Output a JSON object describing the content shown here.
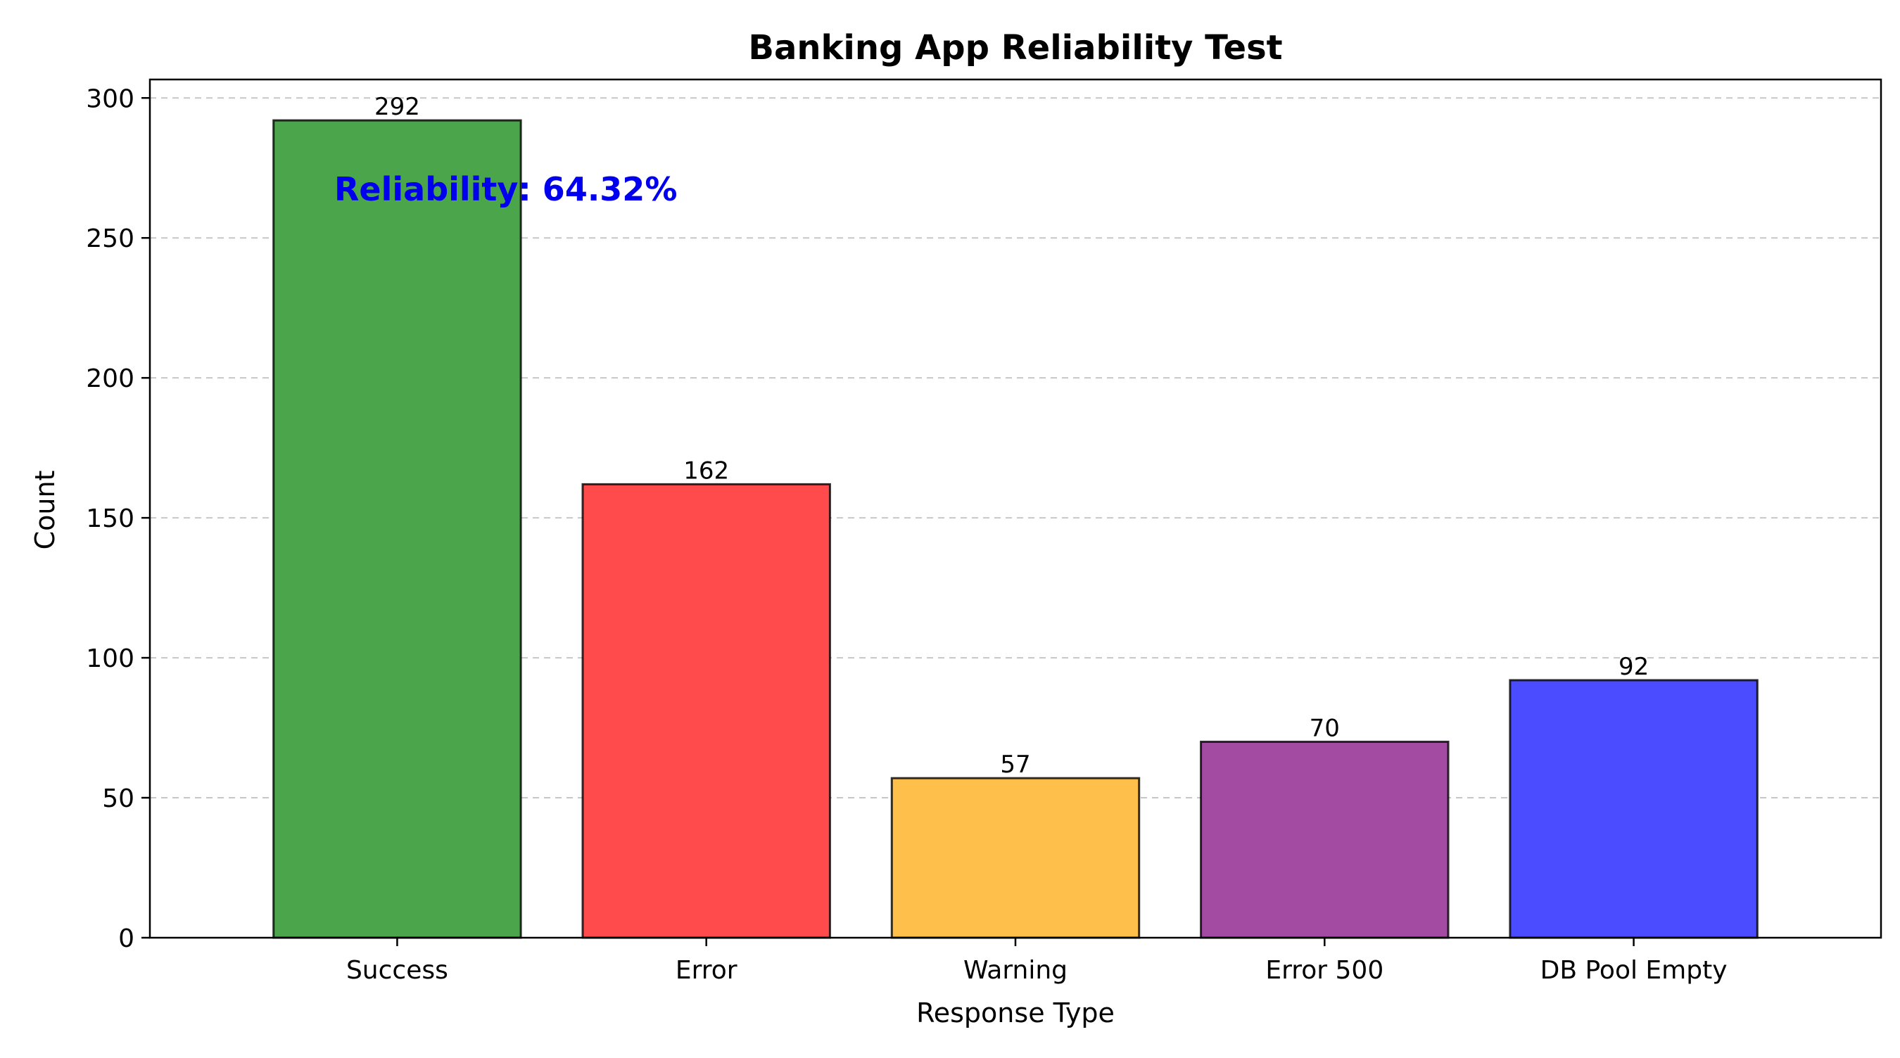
{
  "chart_data": {
    "type": "bar",
    "title": "Banking App Reliability Test",
    "xlabel": "Response Type",
    "ylabel": "Count",
    "categories": [
      "Success",
      "Error",
      "Warning",
      "Error 500",
      "DB Pool Empty"
    ],
    "values": [
      292,
      162,
      57,
      70,
      92
    ],
    "colors": [
      "#4ba54b",
      "#ff4b4b",
      "#ffbf4b",
      "#a34ba3",
      "#4b4bff"
    ],
    "ylim": [
      0,
      306.6
    ],
    "yticks": [
      0,
      50,
      100,
      150,
      200,
      250,
      300
    ],
    "grid": "y-dashed",
    "annotation": {
      "text": "Reliability: 64.32%",
      "color": "#0000ee"
    }
  }
}
